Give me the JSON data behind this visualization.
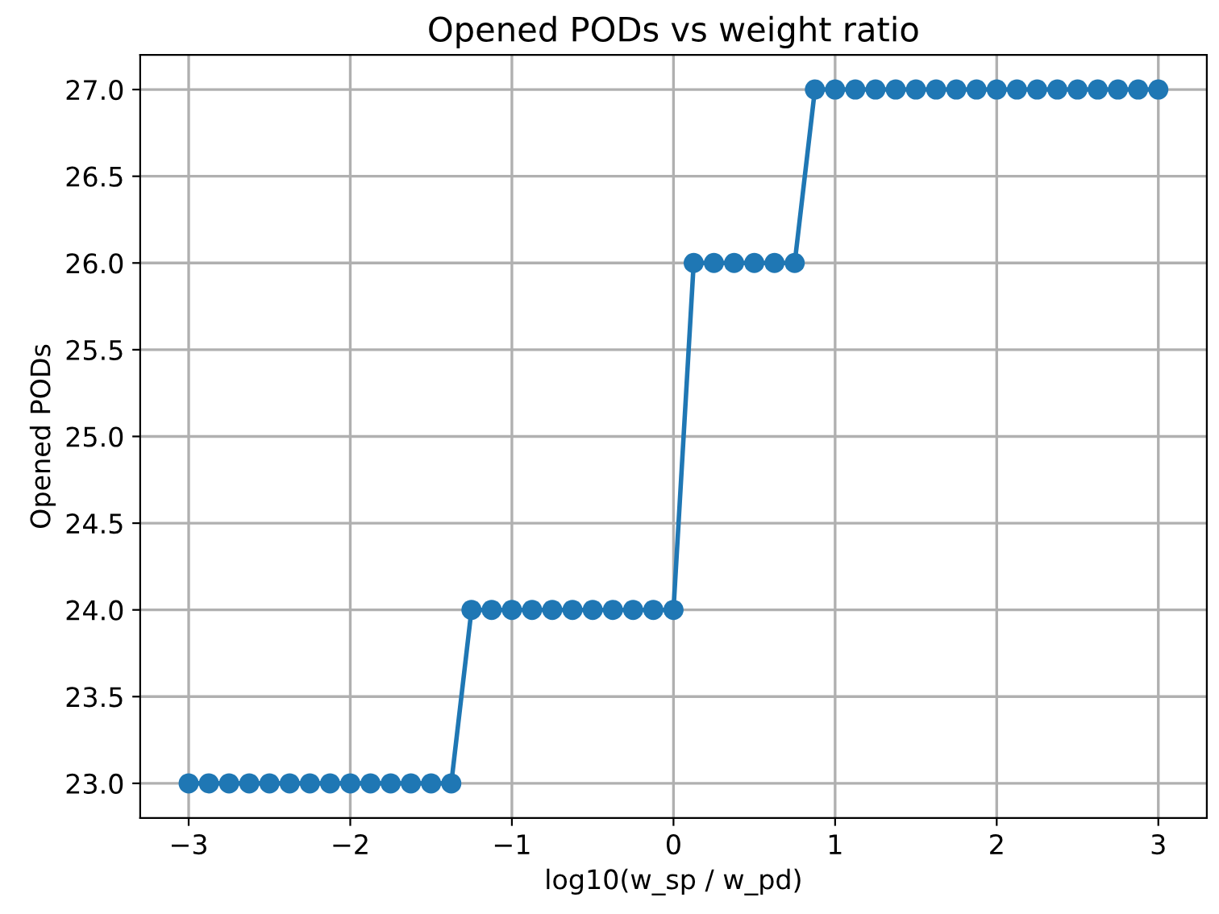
{
  "chart_data": {
    "type": "line",
    "title": "Opened PODs vs weight ratio",
    "xlabel": "log10(w_sp / w_pd)",
    "ylabel": "Opened PODs",
    "x": [
      -3,
      -2.875,
      -2.75,
      -2.625,
      -2.5,
      -2.375,
      -2.25,
      -2.125,
      -2,
      -1.875,
      -1.75,
      -1.625,
      -1.5,
      -1.375,
      -1.25,
      -1.125,
      -1,
      -0.875,
      -0.75,
      -0.625,
      -0.5,
      -0.375,
      -0.25,
      -0.125,
      0,
      0.125,
      0.25,
      0.375,
      0.5,
      0.625,
      0.75,
      0.875,
      1,
      1.125,
      1.25,
      1.375,
      1.5,
      1.625,
      1.75,
      1.875,
      2,
      2.125,
      2.25,
      2.375,
      2.5,
      2.625,
      2.75,
      2.875,
      3
    ],
    "series": [
      {
        "color": "#1f77b4",
        "values": [
          23,
          23,
          23,
          23,
          23,
          23,
          23,
          23,
          23,
          23,
          23,
          23,
          23,
          23,
          24,
          24,
          24,
          24,
          24,
          24,
          24,
          24,
          24,
          24,
          24,
          26,
          26,
          26,
          26,
          26,
          26,
          27,
          27,
          27,
          27,
          27,
          27,
          27,
          27,
          27,
          27,
          27,
          27,
          27,
          27,
          27,
          27,
          27,
          27
        ]
      }
    ],
    "xlim": [
      -3.3,
      3.3
    ],
    "ylim": [
      22.8,
      27.2
    ],
    "xticks": [
      {
        "value": -3,
        "label": "−3"
      },
      {
        "value": -2,
        "label": "−2"
      },
      {
        "value": -1,
        "label": "−1"
      },
      0,
      1,
      2,
      3
    ],
    "yticks": [
      {
        "value": 23,
        "label": "23.0"
      },
      {
        "value": 23.5,
        "label": "23.5"
      },
      {
        "value": 24,
        "label": "24.0"
      },
      {
        "value": 24.5,
        "label": "24.5"
      },
      {
        "value": 25,
        "label": "25.0"
      },
      {
        "value": 25.5,
        "label": "25.5"
      },
      {
        "value": 26,
        "label": "26.0"
      },
      {
        "value": 26.5,
        "label": "26.5"
      },
      {
        "value": 27,
        "label": "27.0"
      }
    ],
    "grid": true,
    "marker": "circle",
    "line_style": "solid"
  }
}
